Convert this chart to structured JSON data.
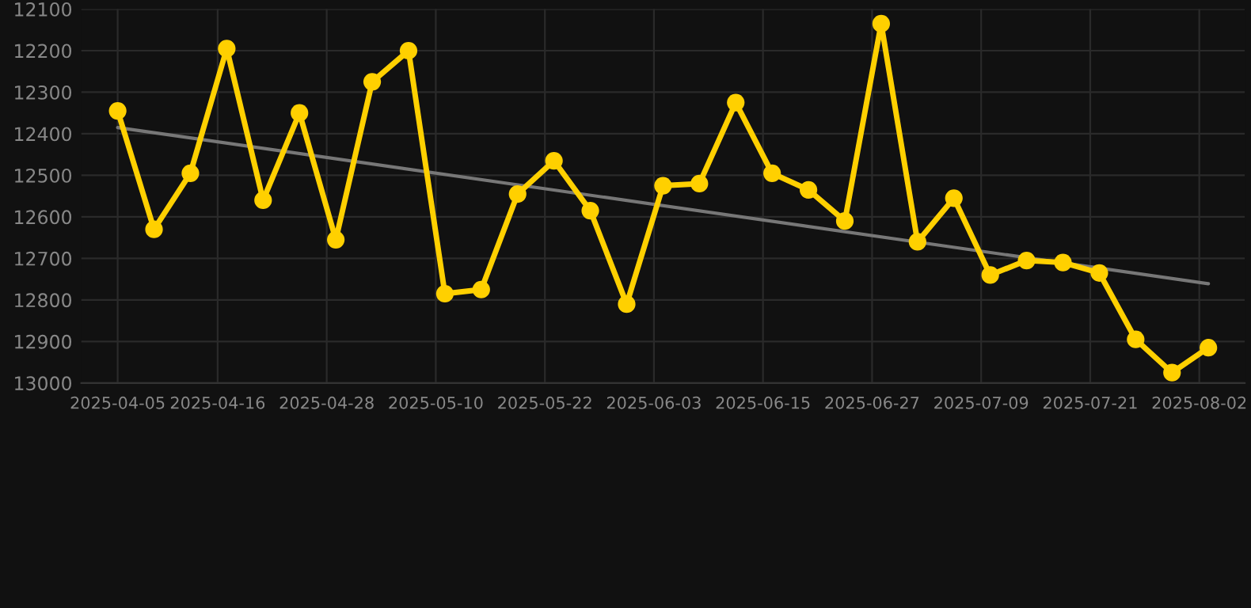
{
  "chart_data": {
    "type": "line",
    "x": [
      "2025-04-05",
      "2025-04-09",
      "2025-04-13",
      "2025-04-17",
      "2025-04-21",
      "2025-04-25",
      "2025-04-29",
      "2025-05-03",
      "2025-05-07",
      "2025-05-11",
      "2025-05-15",
      "2025-05-19",
      "2025-05-23",
      "2025-05-27",
      "2025-05-31",
      "2025-06-04",
      "2025-06-08",
      "2025-06-12",
      "2025-06-16",
      "2025-06-20",
      "2025-06-24",
      "2025-06-28",
      "2025-07-02",
      "2025-07-06",
      "2025-07-10",
      "2025-07-14",
      "2025-07-18",
      "2025-07-22",
      "2025-07-26",
      "2025-07-30",
      "2025-08-03"
    ],
    "series": [
      {
        "color": "#ffd000",
        "marker": "circle",
        "values": [
          12345,
          12630,
          12495,
          12195,
          12560,
          12350,
          12655,
          12275,
          12200,
          12785,
          12775,
          12545,
          12465,
          12585,
          12810,
          12525,
          12520,
          12325,
          12495,
          12535,
          12610,
          12135,
          12660,
          12555,
          12740,
          12705,
          12710,
          12735,
          12895,
          12975,
          12915
        ]
      },
      {
        "color": "#777777",
        "marker": "none",
        "x": [
          "2025-04-05",
          "2025-08-03"
        ],
        "values": [
          12385,
          12761
        ]
      }
    ],
    "xlim": [
      "2025-04-01",
      "2025-08-07"
    ],
    "xticks": [
      {
        "value": "2025-04-05",
        "label": "2025-04-05"
      },
      {
        "value": "2025-04-16",
        "label": "2025-04-16"
      },
      {
        "value": "2025-04-28",
        "label": "2025-04-28"
      },
      {
        "value": "2025-05-10",
        "label": "2025-05-10"
      },
      {
        "value": "2025-05-22",
        "label": "2025-05-22"
      },
      {
        "value": "2025-06-03",
        "label": "2025-06-03"
      },
      {
        "value": "2025-06-15",
        "label": "2025-06-15"
      },
      {
        "value": "2025-06-27",
        "label": "2025-06-27"
      },
      {
        "value": "2025-07-09",
        "label": "2025-07-09"
      },
      {
        "value": "2025-07-21",
        "label": "2025-07-21"
      },
      {
        "value": "2025-08-02",
        "label": "2025-08-02"
      }
    ],
    "ylim": [
      13000,
      12100
    ],
    "yticks": [
      12100,
      12200,
      12300,
      12400,
      12500,
      12600,
      12700,
      12800,
      12900,
      13000
    ],
    "grid": true
  }
}
